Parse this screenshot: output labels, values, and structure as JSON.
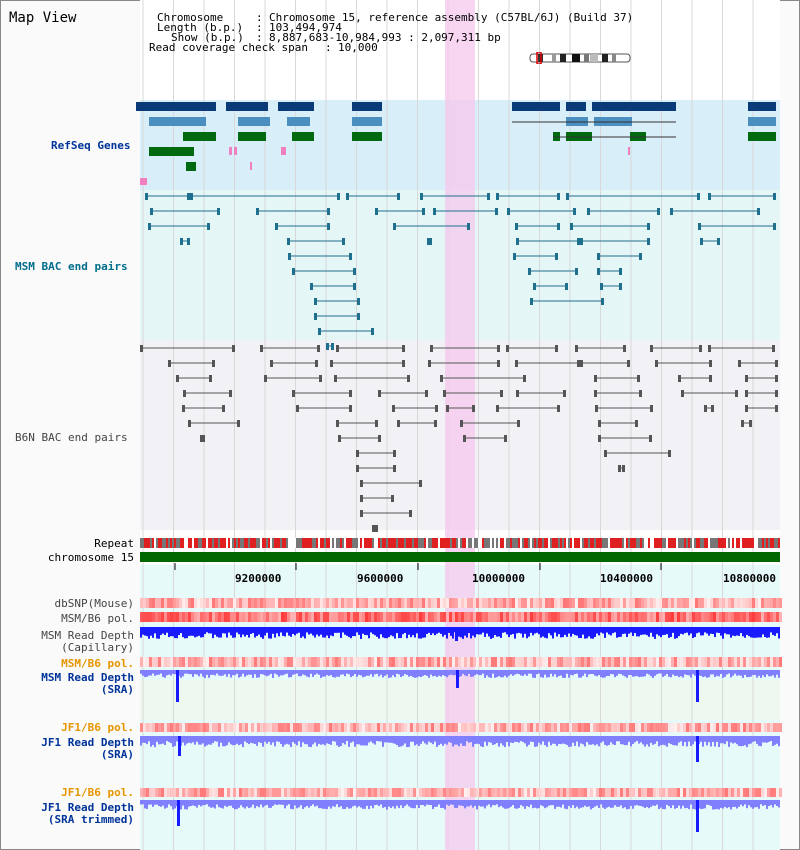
{
  "title": "Map View",
  "header": {
    "chromosome_key": "Chromosome",
    "chromosome_value": "Chromosome 15, reference assembly (C57BL/6J) (Build 37)",
    "length_key": "Length (b.p.)",
    "length_value": "103,494,974",
    "show_key": "Show (b.p.)",
    "show_value": "8,887,683-10,984,993 : 2,097,311 bp",
    "coverage_key": "Read coverage check span",
    "coverage_value": "10,000"
  },
  "tracks": {
    "refseq": "RefSeq Genes",
    "msm_bac": "MSM BAC end pairs",
    "b6n_bac": "B6N BAC end pairs",
    "repeat": "Repeat",
    "chromosome": "chromosome 15",
    "dbsnp": "dbSNP(Mouse)",
    "msm_b6_pol_1": "MSM/B6 pol.",
    "msm_read_depth_cap_1": "MSM Read Depth",
    "msm_read_depth_cap_2": "(Capillary)",
    "msm_b6_pol_2": "MSM/B6 pol.",
    "msm_read_depth_sra_1": "MSM Read Depth",
    "msm_read_depth_sra_2": "(SRA)",
    "jf1_b6_pol_1": "JF1/B6 pol.",
    "jf1_read_depth_sra_1": "JF1 Read Depth",
    "jf1_read_depth_sra_2": "(SRA)",
    "jf1_b6_pol_2": "JF1/B6 pol.",
    "jf1_read_depth_trim_1": "JF1 Read Depth",
    "jf1_read_depth_trim_2": "(SRA trimmed)"
  },
  "axis": {
    "ticks": [
      "9200000",
      "9600000",
      "10000000",
      "10400000",
      "10800000"
    ]
  },
  "colors": {
    "gene_dark": "#0a3a78",
    "gene_mid": "#4a8fbf",
    "gene_green": "#006a10",
    "pink_highlight": "#f5c8ee",
    "bac_msm": "#1f6f8f",
    "bac_b6n": "#555555",
    "repeat_red": "#e02020",
    "chromosome_green": "#006600",
    "depth_blue": "#1a1aff",
    "depth_light": "#8080ff"
  }
}
